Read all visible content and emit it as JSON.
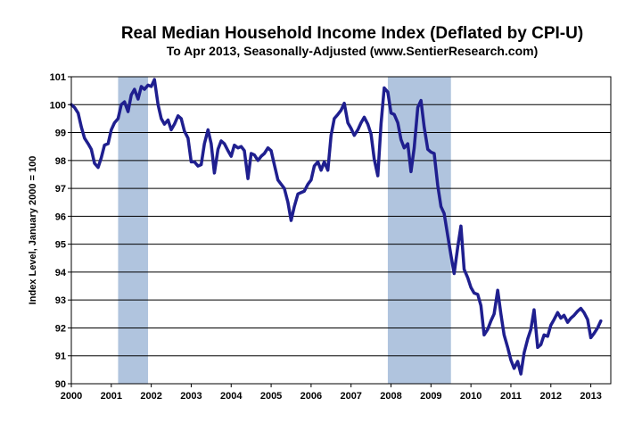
{
  "chart_data": {
    "type": "line",
    "title": "Real Median Household Income Index (Deflated by CPI-U)",
    "subtitle": "To Apr 2013, Seasonally-Adjusted  (www.SentierResearch.com)",
    "xlabel": "",
    "ylabel": "Index Level, January 2000 = 100",
    "xlim": [
      2000,
      2013.5
    ],
    "ylim": [
      90,
      101
    ],
    "x_ticks": [
      {
        "value": 2000,
        "label": "2000"
      },
      {
        "value": 2001,
        "label": "2001"
      },
      {
        "value": 2002,
        "label": "2002"
      },
      {
        "value": 2003,
        "label": "2003"
      },
      {
        "value": 2004,
        "label": "2004"
      },
      {
        "value": 2005,
        "label": "2005"
      },
      {
        "value": 2006,
        "label": "2006"
      },
      {
        "value": 2007,
        "label": "2007"
      },
      {
        "value": 2008,
        "label": "2008"
      },
      {
        "value": 2009,
        "label": "2009"
      },
      {
        "value": 2010,
        "label": "2010"
      },
      {
        "value": 2011,
        "label": "2011"
      },
      {
        "value": 2012,
        "label": "2012"
      },
      {
        "value": 2013,
        "label": "2013"
      }
    ],
    "y_ticks": [
      {
        "value": 90,
        "label": "90"
      },
      {
        "value": 91,
        "label": "91"
      },
      {
        "value": 92,
        "label": "92"
      },
      {
        "value": 93,
        "label": "93"
      },
      {
        "value": 94,
        "label": "94"
      },
      {
        "value": 95,
        "label": "95"
      },
      {
        "value": 96,
        "label": "96"
      },
      {
        "value": 97,
        "label": "97"
      },
      {
        "value": 98,
        "label": "98"
      },
      {
        "value": 99,
        "label": "99"
      },
      {
        "value": 100,
        "label": "100"
      },
      {
        "value": 101,
        "label": "101"
      }
    ],
    "recessions": [
      {
        "start": 2001.17,
        "end": 2001.92
      },
      {
        "start": 2007.92,
        "end": 2009.5
      }
    ],
    "grid": true,
    "colors": {
      "line": "#1f1f8f",
      "recession": "#b0c4de",
      "grid": "#000000",
      "background": "#ffffff"
    },
    "series": [
      {
        "name": "Real Median Household Income Index",
        "x": [
          2000,
          2000.08,
          2000.17,
          2000.25,
          2000.33,
          2000.42,
          2000.5,
          2000.58,
          2000.67,
          2000.75,
          2000.83,
          2000.92,
          2001,
          2001.08,
          2001.17,
          2001.25,
          2001.33,
          2001.42,
          2001.5,
          2001.58,
          2001.67,
          2001.75,
          2001.83,
          2001.92,
          2002,
          2002.08,
          2002.17,
          2002.25,
          2002.33,
          2002.42,
          2002.5,
          2002.58,
          2002.67,
          2002.75,
          2002.83,
          2002.92,
          2003,
          2003.08,
          2003.17,
          2003.25,
          2003.33,
          2003.42,
          2003.5,
          2003.58,
          2003.67,
          2003.75,
          2003.83,
          2003.92,
          2004,
          2004.08,
          2004.17,
          2004.25,
          2004.33,
          2004.42,
          2004.5,
          2004.58,
          2004.67,
          2004.75,
          2004.83,
          2004.92,
          2005,
          2005.08,
          2005.17,
          2005.25,
          2005.33,
          2005.42,
          2005.5,
          2005.58,
          2005.67,
          2005.75,
          2005.83,
          2005.92,
          2006,
          2006.08,
          2006.17,
          2006.25,
          2006.33,
          2006.42,
          2006.5,
          2006.58,
          2006.67,
          2006.75,
          2006.83,
          2006.92,
          2007,
          2007.08,
          2007.17,
          2007.25,
          2007.33,
          2007.42,
          2007.5,
          2007.58,
          2007.67,
          2007.75,
          2007.83,
          2007.92,
          2008,
          2008.08,
          2008.17,
          2008.25,
          2008.33,
          2008.42,
          2008.5,
          2008.58,
          2008.67,
          2008.75,
          2008.83,
          2008.92,
          2009,
          2009.08,
          2009.17,
          2009.25,
          2009.33,
          2009.42,
          2009.5,
          2009.58,
          2009.67,
          2009.75,
          2009.83,
          2009.92,
          2010,
          2010.08,
          2010.17,
          2010.25,
          2010.33,
          2010.42,
          2010.5,
          2010.58,
          2010.67,
          2010.75,
          2010.83,
          2010.92,
          2011,
          2011.08,
          2011.17,
          2011.25,
          2011.33,
          2011.42,
          2011.5,
          2011.58,
          2011.67,
          2011.75,
          2011.83,
          2011.92,
          2012,
          2012.08,
          2012.17,
          2012.25,
          2012.33,
          2012.42,
          2012.5,
          2012.58,
          2012.67,
          2012.75,
          2012.83,
          2012.92,
          2013,
          2013.08,
          2013.17,
          2013.25
        ],
        "values": [
          100.0,
          99.9,
          99.7,
          99.2,
          98.8,
          98.6,
          98.4,
          97.9,
          97.75,
          98.1,
          98.55,
          98.6,
          99.1,
          99.35,
          99.5,
          100.0,
          100.1,
          99.75,
          100.35,
          100.55,
          100.2,
          100.65,
          100.55,
          100.7,
          100.65,
          100.9,
          100.0,
          99.5,
          99.3,
          99.45,
          99.1,
          99.3,
          99.6,
          99.5,
          99.05,
          98.8,
          97.95,
          97.95,
          97.8,
          97.85,
          98.6,
          99.1,
          98.6,
          97.55,
          98.4,
          98.7,
          98.6,
          98.35,
          98.15,
          98.55,
          98.45,
          98.5,
          98.35,
          97.35,
          98.25,
          98.2,
          98.0,
          98.15,
          98.25,
          98.45,
          98.35,
          97.85,
          97.3,
          97.15,
          97.0,
          96.5,
          95.85,
          96.35,
          96.8,
          96.85,
          96.9,
          97.15,
          97.3,
          97.8,
          97.95,
          97.65,
          97.95,
          97.65,
          98.9,
          99.5,
          99.65,
          99.8,
          100.05,
          99.35,
          99.15,
          98.9,
          99.1,
          99.35,
          99.55,
          99.3,
          98.95,
          98.05,
          97.45,
          99.3,
          100.6,
          100.45,
          99.7,
          99.65,
          99.35,
          98.75,
          98.45,
          98.6,
          97.6,
          98.45,
          99.9,
          100.15,
          99.2,
          98.4,
          98.3,
          98.25,
          97.1,
          96.35,
          96.1,
          95.3,
          94.6,
          93.95,
          94.9,
          95.65,
          94.1,
          93.8,
          93.45,
          93.25,
          93.2,
          92.8,
          91.75,
          91.95,
          92.25,
          92.5,
          93.35,
          92.5,
          91.75,
          91.3,
          90.85,
          90.55,
          90.8,
          90.35,
          91.1,
          91.6,
          91.95,
          92.65,
          91.3,
          91.4,
          91.75,
          91.7,
          92.1,
          92.3,
          92.55,
          92.35,
          92.45,
          92.2,
          92.35,
          92.45,
          92.6,
          92.7,
          92.55,
          92.3,
          91.65,
          91.8,
          92.0,
          92.25
        ]
      }
    ]
  }
}
